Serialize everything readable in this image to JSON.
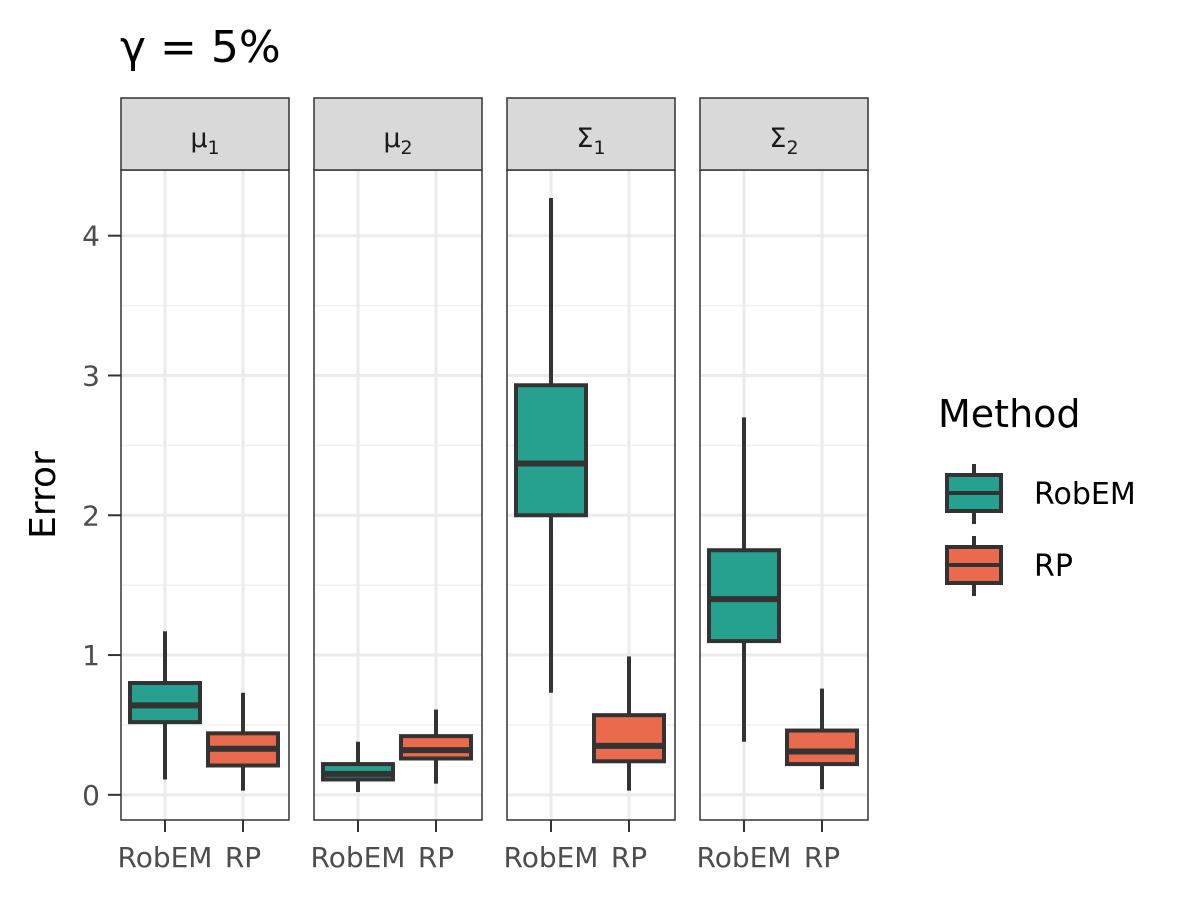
{
  "chart_data": {
    "type": "boxplot",
    "title": "γ = 5%",
    "ylabel": "Error",
    "xlabel": "",
    "ylim": [
      -0.18,
      4.47
    ],
    "yticks": [
      0,
      1,
      2,
      3,
      4
    ],
    "categories": [
      "RobEM",
      "RP"
    ],
    "colors": {
      "RobEM": "#26A08F",
      "RP": "#EA6A4E"
    },
    "legend": {
      "title": "Method",
      "position": "right",
      "items": [
        "RobEM",
        "RP"
      ]
    },
    "panels": [
      {
        "label": "μ",
        "sub": "1",
        "boxes": [
          {
            "method": "RobEM",
            "whisker_low": 0.11,
            "q1": 0.52,
            "median": 0.64,
            "q3": 0.8,
            "whisker_high": 1.17
          },
          {
            "method": "RP",
            "whisker_low": 0.03,
            "q1": 0.21,
            "median": 0.33,
            "q3": 0.44,
            "whisker_high": 0.73
          }
        ]
      },
      {
        "label": "μ",
        "sub": "2",
        "boxes": [
          {
            "method": "RobEM",
            "whisker_low": 0.02,
            "q1": 0.11,
            "median": 0.15,
            "q3": 0.22,
            "whisker_high": 0.38
          },
          {
            "method": "RP",
            "whisker_low": 0.08,
            "q1": 0.26,
            "median": 0.32,
            "q3": 0.42,
            "whisker_high": 0.61
          }
        ]
      },
      {
        "label": "Σ",
        "sub": "1",
        "boxes": [
          {
            "method": "RobEM",
            "whisker_low": 0.73,
            "q1": 2.0,
            "median": 2.37,
            "q3": 2.93,
            "whisker_high": 4.27
          },
          {
            "method": "RP",
            "whisker_low": 0.03,
            "q1": 0.24,
            "median": 0.35,
            "q3": 0.57,
            "whisker_high": 0.99
          }
        ]
      },
      {
        "label": "Σ",
        "sub": "2",
        "boxes": [
          {
            "method": "RobEM",
            "whisker_low": 0.38,
            "q1": 1.1,
            "median": 1.4,
            "q3": 1.75,
            "whisker_high": 2.7
          },
          {
            "method": "RP",
            "whisker_low": 0.04,
            "q1": 0.22,
            "median": 0.31,
            "q3": 0.46,
            "whisker_high": 0.76
          }
        ]
      }
    ]
  }
}
